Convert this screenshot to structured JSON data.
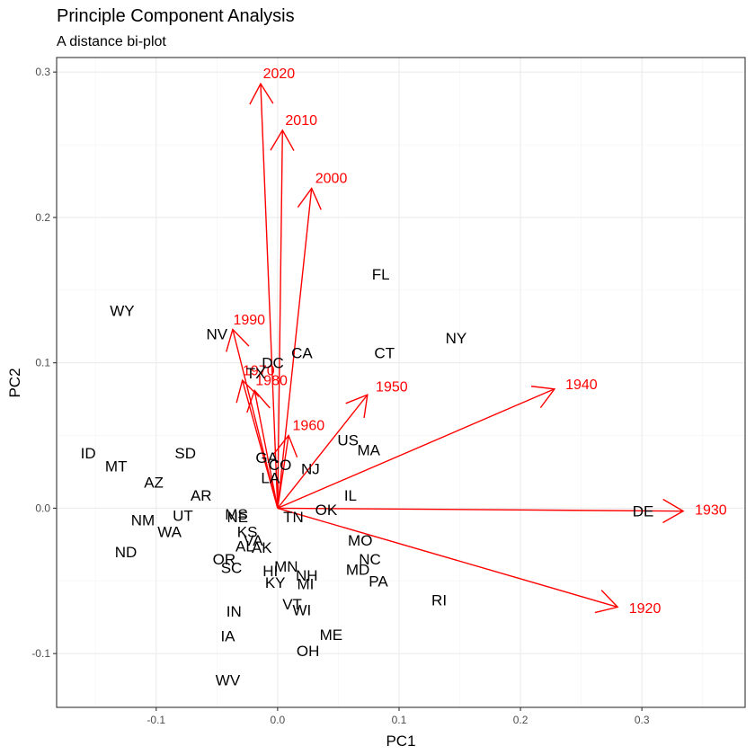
{
  "chart_data": {
    "type": "scatter",
    "title": "Principle Component Analysis",
    "subtitle": "A distance bi-plot",
    "xlabel": "PC1",
    "ylabel": "PC2",
    "xlim": [
      -0.182,
      0.385
    ],
    "ylim": [
      -0.137,
      0.31
    ],
    "x_ticks": [
      {
        "value": -0.1,
        "label": "-0.1"
      },
      {
        "value": 0.0,
        "label": "0.0"
      },
      {
        "value": 0.1,
        "label": "0.1"
      },
      {
        "value": 0.2,
        "label": "0.2"
      },
      {
        "value": 0.3,
        "label": "0.3"
      }
    ],
    "y_ticks": [
      {
        "value": -0.1,
        "label": "-0.1"
      },
      {
        "value": 0.0,
        "label": "0.0"
      },
      {
        "value": 0.1,
        "label": "0.1"
      },
      {
        "value": 0.2,
        "label": "0.2"
      },
      {
        "value": 0.3,
        "label": "0.3"
      }
    ],
    "grid": true,
    "points_color": "#000000",
    "loadings_color": "#ff0000",
    "points": [
      {
        "label": "WY",
        "x": -0.128,
        "y": 0.136
      },
      {
        "label": "NV",
        "x": -0.05,
        "y": 0.12
      },
      {
        "label": "CA",
        "x": 0.02,
        "y": 0.107
      },
      {
        "label": "CT",
        "x": 0.088,
        "y": 0.107
      },
      {
        "label": "FL",
        "x": 0.085,
        "y": 0.161
      },
      {
        "label": "NY",
        "x": 0.147,
        "y": 0.117
      },
      {
        "label": "DC",
        "x": -0.004,
        "y": 0.1
      },
      {
        "label": "TX",
        "x": -0.018,
        "y": 0.093
      },
      {
        "label": "US",
        "x": 0.058,
        "y": 0.047
      },
      {
        "label": "MA",
        "x": 0.075,
        "y": 0.04
      },
      {
        "label": "ID",
        "x": -0.156,
        "y": 0.038
      },
      {
        "label": "SD",
        "x": -0.076,
        "y": 0.038
      },
      {
        "label": "MT",
        "x": -0.133,
        "y": 0.029
      },
      {
        "label": "GA",
        "x": -0.009,
        "y": 0.035
      },
      {
        "label": "CO",
        "x": 0.002,
        "y": 0.03
      },
      {
        "label": "NJ",
        "x": 0.027,
        "y": 0.027
      },
      {
        "label": "LA",
        "x": -0.006,
        "y": 0.021
      },
      {
        "label": "AZ",
        "x": -0.102,
        "y": 0.018
      },
      {
        "label": "AR",
        "x": -0.063,
        "y": 0.009
      },
      {
        "label": "IL",
        "x": 0.06,
        "y": 0.009
      },
      {
        "label": "OK",
        "x": 0.04,
        "y": -0.001
      },
      {
        "label": "MS",
        "x": -0.034,
        "y": -0.004
      },
      {
        "label": "NE",
        "x": -0.033,
        "y": -0.006
      },
      {
        "label": "TN",
        "x": 0.013,
        "y": -0.006
      },
      {
        "label": "UT",
        "x": -0.078,
        "y": -0.005
      },
      {
        "label": "NM",
        "x": -0.111,
        "y": -0.008
      },
      {
        "label": "WA",
        "x": -0.089,
        "y": -0.016
      },
      {
        "label": "KS",
        "x": -0.025,
        "y": -0.016
      },
      {
        "label": "VA",
        "x": -0.02,
        "y": -0.022
      },
      {
        "label": "AL",
        "x": -0.027,
        "y": -0.026
      },
      {
        "label": "AK",
        "x": -0.013,
        "y": -0.027
      },
      {
        "label": "ND",
        "x": -0.125,
        "y": -0.03
      },
      {
        "label": "MO",
        "x": 0.068,
        "y": -0.022
      },
      {
        "label": "OR",
        "x": -0.044,
        "y": -0.035
      },
      {
        "label": "NC",
        "x": 0.076,
        "y": -0.035
      },
      {
        "label": "SC",
        "x": -0.038,
        "y": -0.041
      },
      {
        "label": "HI",
        "x": -0.006,
        "y": -0.043
      },
      {
        "label": "MN",
        "x": 0.007,
        "y": -0.04
      },
      {
        "label": "MD",
        "x": 0.066,
        "y": -0.042
      },
      {
        "label": "NH",
        "x": 0.024,
        "y": -0.046
      },
      {
        "label": "KY",
        "x": -0.002,
        "y": -0.051
      },
      {
        "label": "MI",
        "x": 0.023,
        "y": -0.052
      },
      {
        "label": "PA",
        "x": 0.083,
        "y": -0.05
      },
      {
        "label": "RI",
        "x": 0.133,
        "y": -0.063
      },
      {
        "label": "VT",
        "x": 0.012,
        "y": -0.066
      },
      {
        "label": "WI",
        "x": 0.02,
        "y": -0.07
      },
      {
        "label": "IN",
        "x": -0.036,
        "y": -0.071
      },
      {
        "label": "IA",
        "x": -0.041,
        "y": -0.088
      },
      {
        "label": "ME",
        "x": 0.044,
        "y": -0.087
      },
      {
        "label": "OH",
        "x": 0.025,
        "y": -0.098
      },
      {
        "label": "WV",
        "x": -0.041,
        "y": -0.118
      },
      {
        "label": "DE",
        "x": 0.301,
        "y": -0.002
      }
    ],
    "loadings": [
      {
        "name": "2020",
        "x": -0.014,
        "y": 0.292
      },
      {
        "name": "2010",
        "x": 0.004,
        "y": 0.26
      },
      {
        "name": "2000",
        "x": 0.028,
        "y": 0.22
      },
      {
        "name": "1990",
        "x": -0.037,
        "y": 0.123
      },
      {
        "name": "1970",
        "x": -0.029,
        "y": 0.088
      },
      {
        "name": "1980",
        "x": -0.019,
        "y": 0.081
      },
      {
        "name": "1950",
        "x": 0.074,
        "y": 0.078
      },
      {
        "name": "1960",
        "x": 0.009,
        "y": 0.05
      },
      {
        "name": "1940",
        "x": 0.228,
        "y": 0.082
      },
      {
        "name": "1930",
        "x": 0.334,
        "y": -0.002
      },
      {
        "name": "1920",
        "x": 0.28,
        "y": -0.068
      }
    ]
  }
}
